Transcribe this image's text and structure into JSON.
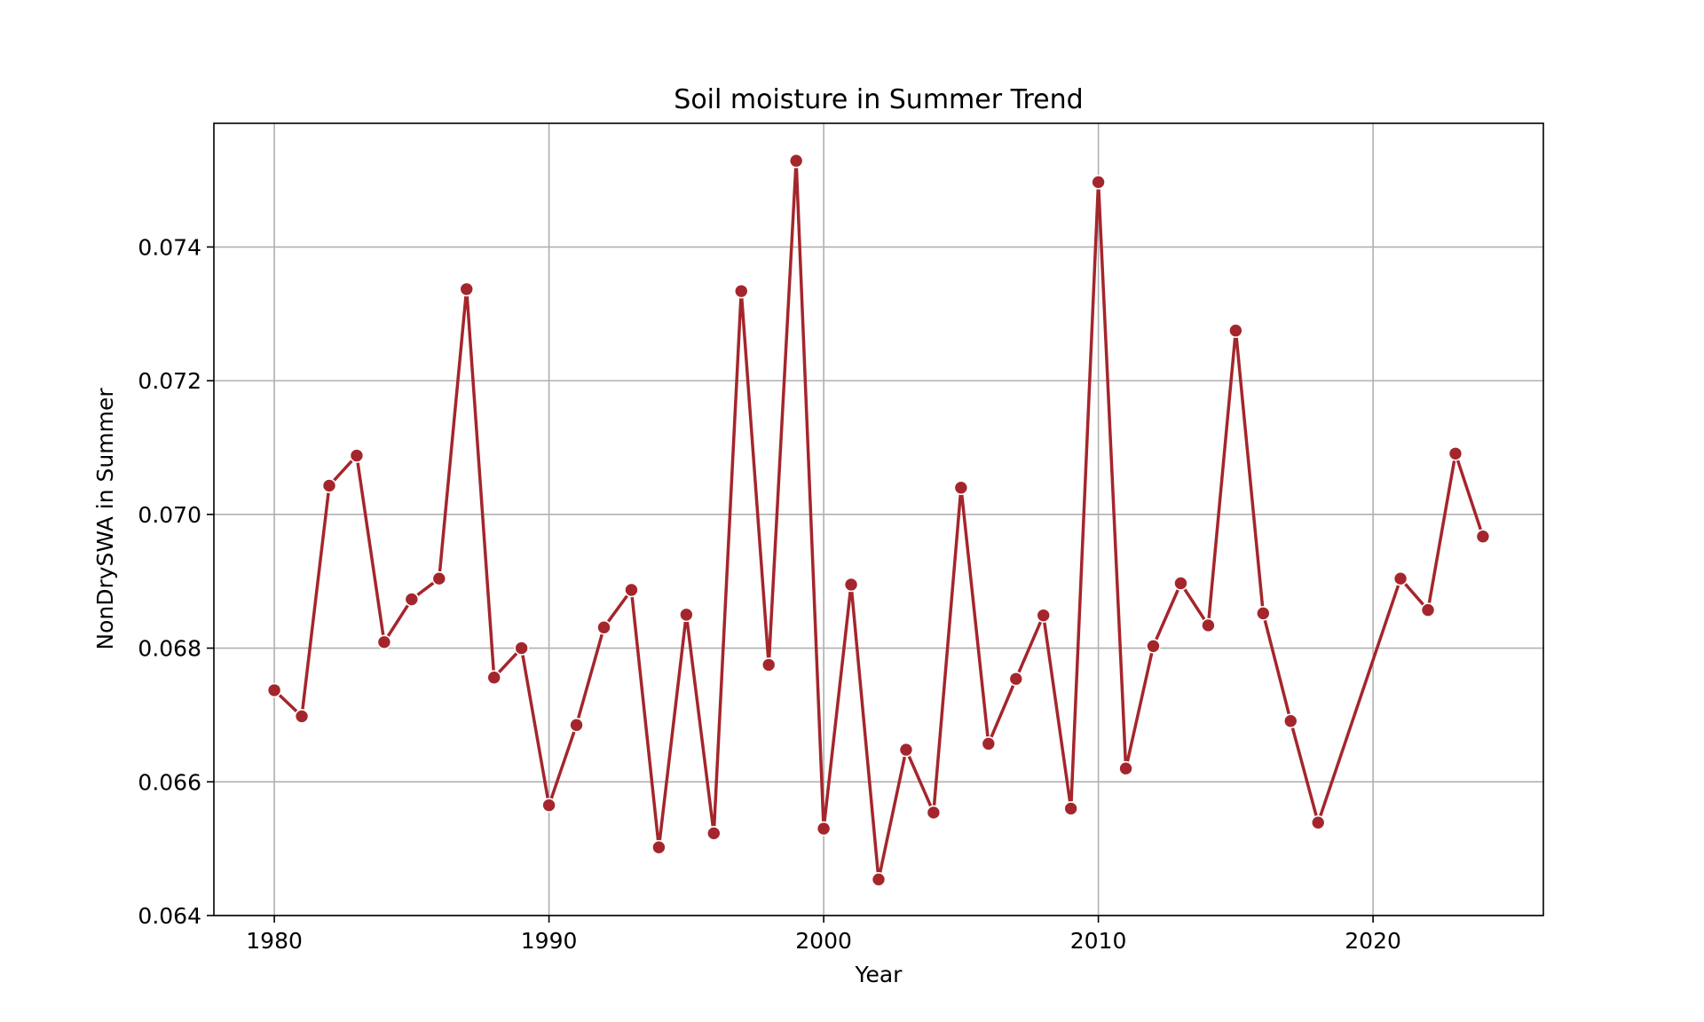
{
  "chart_data": {
    "type": "line",
    "title": "Soil moisture in Summer Trend",
    "xlabel": "Year",
    "ylabel": "NonDrySWA in Summer",
    "xlim": [
      1977.8,
      2026.2
    ],
    "ylim": [
      0.064,
      0.07585
    ],
    "xticks": [
      1980,
      1990,
      2000,
      2010,
      2020
    ],
    "yticks": [
      0.064,
      0.066,
      0.068,
      0.07,
      0.072,
      0.074
    ],
    "ytick_labels": [
      "0.064",
      "0.066",
      "0.068",
      "0.070",
      "0.072",
      "0.074"
    ],
    "grid": true,
    "series_color": "#a4262c",
    "marker_edge_color": "#ffffff",
    "series": [
      {
        "x": [
          1980,
          1981,
          1982,
          1983,
          1984,
          1985,
          1986,
          1987,
          1988,
          1989,
          1990,
          1991,
          1992,
          1993,
          1994,
          1995,
          1996,
          1997,
          1998,
          1999,
          2000,
          2001,
          2002,
          2003,
          2004,
          2005,
          2006,
          2007,
          2008,
          2009,
          2010,
          2011,
          2012,
          2013,
          2014,
          2015,
          2016,
          2017,
          2018,
          2021,
          2022,
          2023,
          2024
        ],
        "values": [
          0.06737,
          0.06698,
          0.07043,
          0.07088,
          0.06809,
          0.06873,
          0.06904,
          0.07337,
          0.06756,
          0.068,
          0.06565,
          0.06685,
          0.06831,
          0.06887,
          0.06502,
          0.0685,
          0.06523,
          0.07334,
          0.06775,
          0.07529,
          0.0653,
          0.06895,
          0.06454,
          0.06648,
          0.06554,
          0.0704,
          0.06657,
          0.06754,
          0.06849,
          0.0656,
          0.07497,
          0.0662,
          0.06803,
          0.06897,
          0.06834,
          0.07275,
          0.06852,
          0.06691,
          0.06539,
          0.06904,
          0.06857,
          0.07091,
          0.06967
        ]
      }
    ]
  }
}
